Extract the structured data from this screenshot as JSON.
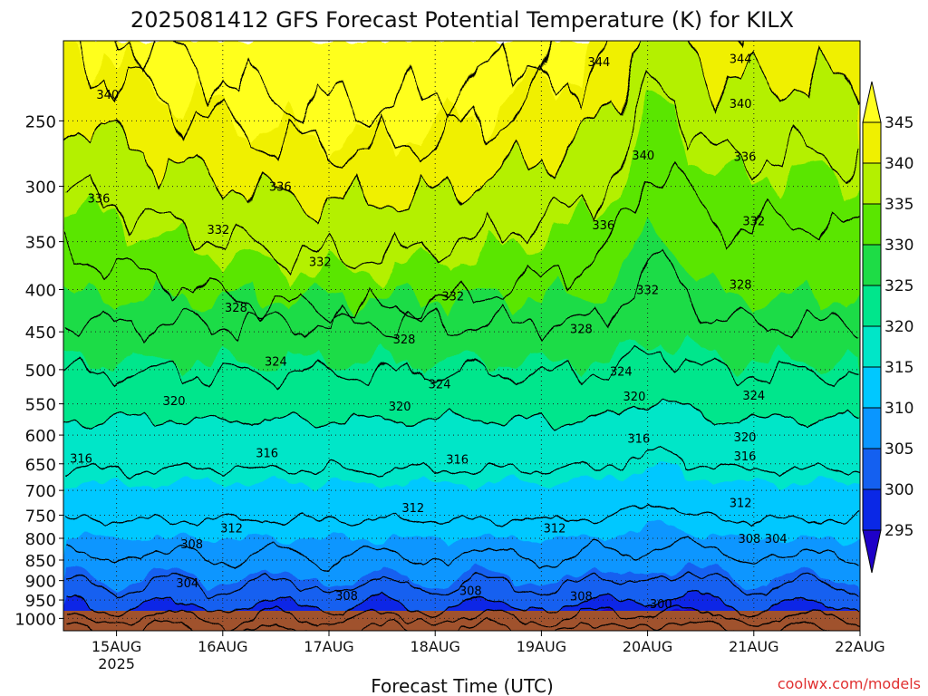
{
  "chart_data": {
    "type": "heatmap",
    "title": "2025081412 GFS Forecast Potential Temperature (K) for KILX",
    "xlabel": "Forecast Time (UTC)",
    "ylabel": "",
    "watermark": "coolwx.com/models",
    "y_scale": "log",
    "ylim": [
      1035,
      200
    ],
    "xlim": [
      "2025-08-14T12:00",
      "2025-08-22T00:00"
    ],
    "x_ticks": [
      {
        "label": "15AUG",
        "sublabel": "2025",
        "time": "2025-08-15T00:00"
      },
      {
        "label": "16AUG",
        "time": "2025-08-16T00:00"
      },
      {
        "label": "17AUG",
        "time": "2025-08-17T00:00"
      },
      {
        "label": "18AUG",
        "time": "2025-08-18T00:00"
      },
      {
        "label": "19AUG",
        "time": "2025-08-19T00:00"
      },
      {
        "label": "20AUG",
        "time": "2025-08-20T00:00"
      },
      {
        "label": "21AUG",
        "time": "2025-08-21T00:00"
      },
      {
        "label": "22AUG",
        "time": "2025-08-22T00:00"
      }
    ],
    "y_ticks": [
      "250",
      "300",
      "350",
      "400",
      "450",
      "500",
      "550",
      "600",
      "650",
      "700",
      "750",
      "800",
      "850",
      "900",
      "950",
      "1000"
    ],
    "grid": "dotted",
    "colorbar": {
      "labels": [
        "345",
        "340",
        "335",
        "330",
        "325",
        "320",
        "315",
        "310",
        "305",
        "300",
        "295"
      ],
      "levels": [
        295,
        300,
        305,
        310,
        315,
        320,
        325,
        330,
        335,
        340,
        345
      ],
      "colors": [
        "#1e00c8",
        "#0a28e6",
        "#1460f0",
        "#0a96ff",
        "#00c8ff",
        "#00e6c8",
        "#00e68c",
        "#1edc46",
        "#5ae600",
        "#b4f000",
        "#f0f000",
        "#ffff1e"
      ]
    },
    "contour_interval_K": 4,
    "contour_labels": [
      {
        "label": "344",
        "time": "2025-08-19T13:00",
        "p": 212
      },
      {
        "label": "344",
        "time": "2025-08-20T21:00",
        "p": 210
      },
      {
        "label": "340",
        "time": "2025-08-14T22:00",
        "p": 232
      },
      {
        "label": "340",
        "time": "2025-08-20T21:00",
        "p": 238
      },
      {
        "label": "340",
        "time": "2025-08-19T23:00",
        "p": 275
      },
      {
        "label": "336",
        "time": "2025-08-20T22:00",
        "p": 276
      },
      {
        "label": "336",
        "time": "2025-08-16T13:00",
        "p": 300
      },
      {
        "label": "336",
        "time": "2025-08-14T20:00",
        "p": 310
      },
      {
        "label": "336",
        "time": "2025-08-19T14:00",
        "p": 334
      },
      {
        "label": "332",
        "time": "2025-08-15T23:00",
        "p": 338
      },
      {
        "label": "332",
        "time": "2025-08-21T00:00",
        "p": 330
      },
      {
        "label": "332",
        "time": "2025-08-16T22:00",
        "p": 370
      },
      {
        "label": "332",
        "time": "2025-08-18T04:00",
        "p": 407
      },
      {
        "label": "332",
        "time": "2025-08-20T00:00",
        "p": 400
      },
      {
        "label": "328",
        "time": "2025-08-20T21:00",
        "p": 394
      },
      {
        "label": "328",
        "time": "2025-08-16T03:00",
        "p": 420
      },
      {
        "label": "328",
        "time": "2025-08-17T17:00",
        "p": 459
      },
      {
        "label": "328",
        "time": "2025-08-19T09:00",
        "p": 446
      },
      {
        "label": "324",
        "time": "2025-08-16T12:00",
        "p": 488
      },
      {
        "label": "324",
        "time": "2025-08-18T01:00",
        "p": 520
      },
      {
        "label": "324",
        "time": "2025-08-19T18:00",
        "p": 502
      },
      {
        "label": "324",
        "time": "2025-08-21T00:00",
        "p": 537
      },
      {
        "label": "320",
        "time": "2025-08-15T13:00",
        "p": 545
      },
      {
        "label": "320",
        "time": "2025-08-17T16:00",
        "p": 553
      },
      {
        "label": "320",
        "time": "2025-08-19T21:00",
        "p": 538
      },
      {
        "label": "320",
        "time": "2025-08-20T22:00",
        "p": 603
      },
      {
        "label": "316",
        "time": "2025-08-14T16:00",
        "p": 640
      },
      {
        "label": "316",
        "time": "2025-08-16T10:00",
        "p": 630
      },
      {
        "label": "316",
        "time": "2025-08-18T05:00",
        "p": 641
      },
      {
        "label": "316",
        "time": "2025-08-19T22:00",
        "p": 605
      },
      {
        "label": "316",
        "time": "2025-08-20T22:00",
        "p": 636
      },
      {
        "label": "312",
        "time": "2025-08-17T19:00",
        "p": 734
      },
      {
        "label": "312",
        "time": "2025-08-16T02:00",
        "p": 777
      },
      {
        "label": "312",
        "time": "2025-08-19T03:00",
        "p": 777
      },
      {
        "label": "312",
        "time": "2025-08-20T21:00",
        "p": 724
      },
      {
        "label": "308",
        "time": "2025-08-15T17:00",
        "p": 812
      },
      {
        "label": "308",
        "time": "2025-08-20T23:00",
        "p": 800
      },
      {
        "label": "304",
        "time": "2025-08-21T05:00",
        "p": 800
      },
      {
        "label": "304",
        "time": "2025-08-15T16:00",
        "p": 905
      },
      {
        "label": "308",
        "time": "2025-08-17T04:00",
        "p": 938
      },
      {
        "label": "308",
        "time": "2025-08-18T08:00",
        "p": 925
      },
      {
        "label": "308",
        "time": "2025-08-19T09:00",
        "p": 939
      },
      {
        "label": "300",
        "time": "2025-08-20T03:00",
        "p": 960
      }
    ]
  }
}
